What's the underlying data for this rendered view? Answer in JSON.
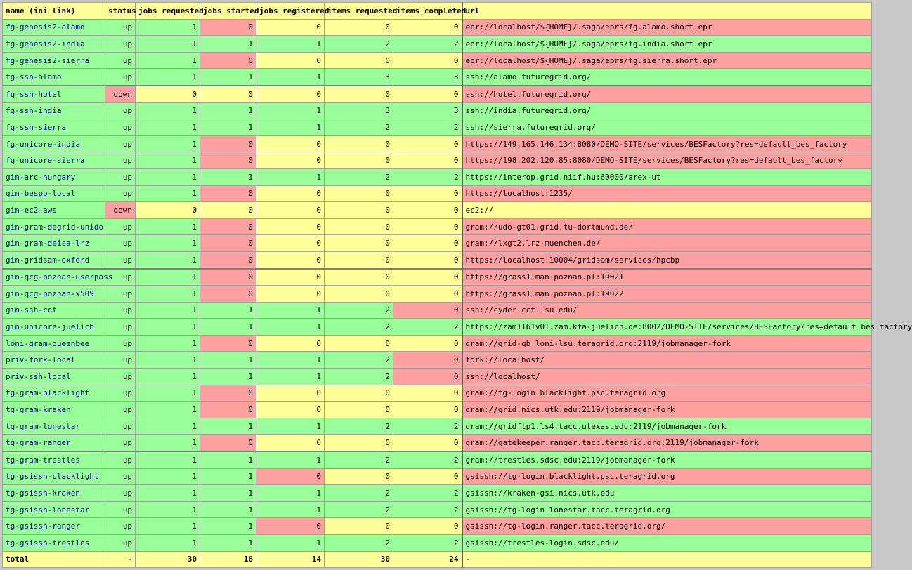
{
  "headers": [
    "name (ini link)",
    "status",
    "jobs requested",
    "jobs started",
    "jobs registered",
    "items requested",
    "items completed",
    "url"
  ],
  "rows": [
    {
      "name": "fg-genesis2-alamo",
      "status": "up",
      "jr": "1",
      "js": "0",
      "jreg": "0",
      "ir": "0",
      "ic": "0",
      "url": "epr://localhost/${HOME}/.saga/eprs/fg.alamo.short.epr",
      "c": [
        "g",
        "g",
        "g",
        "r",
        "y",
        "y",
        "y",
        "r"
      ]
    },
    {
      "name": "fg-genesis2-india",
      "status": "up",
      "jr": "1",
      "js": "1",
      "jreg": "1",
      "ir": "2",
      "ic": "2",
      "url": "epr://localhost/${HOME}/.saga/eprs/fg.india.short.epr",
      "c": [
        "g",
        "g",
        "g",
        "g",
        "g",
        "g",
        "g",
        "g"
      ]
    },
    {
      "name": "fg-genesis2-sierra",
      "status": "up",
      "jr": "1",
      "js": "0",
      "jreg": "0",
      "ir": "0",
      "ic": "0",
      "url": "epr://localhost/${HOME}/.saga/eprs/fg.sierra.short.epr",
      "c": [
        "g",
        "g",
        "g",
        "r",
        "y",
        "y",
        "y",
        "r"
      ]
    },
    {
      "name": "fg-ssh-alamo",
      "status": "up",
      "jr": "1",
      "js": "1",
      "jreg": "1",
      "ir": "3",
      "ic": "3",
      "url": "ssh://alamo.futuregrid.org/",
      "c": [
        "g",
        "g",
        "g",
        "g",
        "g",
        "g",
        "g",
        "g"
      ]
    },
    {
      "name": "fg-ssh-hotel",
      "status": "down",
      "jr": "0",
      "js": "0",
      "jreg": "0",
      "ir": "0",
      "ic": "0",
      "url": "ssh://hotel.futuregrid.org/",
      "c": [
        "g",
        "r",
        "y",
        "y",
        "y",
        "y",
        "y",
        "r"
      ],
      "sep": true
    },
    {
      "name": "fg-ssh-india",
      "status": "up",
      "jr": "1",
      "js": "1",
      "jreg": "1",
      "ir": "3",
      "ic": "3",
      "url": "ssh://india.futuregrid.org/",
      "c": [
        "g",
        "g",
        "g",
        "g",
        "g",
        "g",
        "g",
        "g"
      ]
    },
    {
      "name": "fg-ssh-sierra",
      "status": "up",
      "jr": "1",
      "js": "1",
      "jreg": "1",
      "ir": "2",
      "ic": "2",
      "url": "ssh://sierra.futuregrid.org/",
      "c": [
        "g",
        "g",
        "g",
        "g",
        "g",
        "g",
        "g",
        "g"
      ]
    },
    {
      "name": "fg-unicore-india",
      "status": "up",
      "jr": "1",
      "js": "0",
      "jreg": "0",
      "ir": "0",
      "ic": "0",
      "url": "https://149.165.146.134:8080/DEMO-SITE/services/BESFactory?res=default_bes_factory",
      "c": [
        "g",
        "g",
        "g",
        "r",
        "y",
        "y",
        "y",
        "r"
      ]
    },
    {
      "name": "fg-unicore-sierra",
      "status": "up",
      "jr": "1",
      "js": "0",
      "jreg": "0",
      "ir": "0",
      "ic": "0",
      "url": "https://198.202.120.85:8080/DEMO-SITE/services/BESFactory?res=default_bes_factory",
      "c": [
        "g",
        "g",
        "g",
        "r",
        "y",
        "y",
        "y",
        "r"
      ]
    },
    {
      "name": "gin-arc-hungary",
      "status": "up",
      "jr": "1",
      "js": "1",
      "jreg": "1",
      "ir": "2",
      "ic": "2",
      "url": "https://interop.grid.niif.hu:60000/arex-ut",
      "c": [
        "g",
        "g",
        "g",
        "g",
        "g",
        "g",
        "g",
        "g"
      ]
    },
    {
      "name": "gin-bespp-local",
      "status": "up",
      "jr": "1",
      "js": "0",
      "jreg": "0",
      "ir": "0",
      "ic": "0",
      "url": "https://localhost:1235/",
      "c": [
        "g",
        "g",
        "g",
        "r",
        "y",
        "y",
        "y",
        "r"
      ]
    },
    {
      "name": "gin-ec2-aws",
      "status": "down",
      "jr": "0",
      "js": "0",
      "jreg": "0",
      "ir": "0",
      "ic": "0",
      "url": "ec2://",
      "c": [
        "g",
        "r",
        "y",
        "y",
        "y",
        "y",
        "y",
        "y"
      ]
    },
    {
      "name": "gin-gram-degrid-unido",
      "status": "up",
      "jr": "1",
      "js": "0",
      "jreg": "0",
      "ir": "0",
      "ic": "0",
      "url": "gram://udo-gt01.grid.tu-dortmund.de/",
      "c": [
        "g",
        "g",
        "g",
        "r",
        "y",
        "y",
        "y",
        "r"
      ]
    },
    {
      "name": "gin-gram-deisa-lrz",
      "status": "up",
      "jr": "1",
      "js": "0",
      "jreg": "0",
      "ir": "0",
      "ic": "0",
      "url": "gram://lxgt2.lrz-muenchen.de/",
      "c": [
        "g",
        "g",
        "g",
        "r",
        "y",
        "y",
        "y",
        "r"
      ]
    },
    {
      "name": "gin-gridsam-oxford",
      "status": "up",
      "jr": "1",
      "js": "0",
      "jreg": "0",
      "ir": "0",
      "ic": "0",
      "url": "https://localhost:10004/gridsam/services/hpcbp",
      "c": [
        "g",
        "g",
        "g",
        "r",
        "y",
        "y",
        "y",
        "r"
      ]
    },
    {
      "name": "gin-qcg-poznan-userpass",
      "status": "up",
      "jr": "1",
      "js": "0",
      "jreg": "0",
      "ir": "0",
      "ic": "0",
      "url": "https://grass1.man.poznan.pl:19021",
      "c": [
        "g",
        "g",
        "g",
        "r",
        "y",
        "y",
        "y",
        "r"
      ],
      "sep": true
    },
    {
      "name": "gin-qcg-poznan-x509",
      "status": "up",
      "jr": "1",
      "js": "0",
      "jreg": "0",
      "ir": "0",
      "ic": "0",
      "url": "https://grass1.man.poznan.pl:19022",
      "c": [
        "g",
        "g",
        "g",
        "r",
        "y",
        "y",
        "y",
        "r"
      ]
    },
    {
      "name": "gin-ssh-cct",
      "status": "up",
      "jr": "1",
      "js": "1",
      "jreg": "1",
      "ir": "2",
      "ic": "0",
      "url": "ssh://cyder.cct.lsu.edu/",
      "c": [
        "g",
        "g",
        "g",
        "g",
        "g",
        "g",
        "r",
        "r"
      ]
    },
    {
      "name": "gin-unicore-juelich",
      "status": "up",
      "jr": "1",
      "js": "1",
      "jreg": "1",
      "ir": "2",
      "ic": "2",
      "url": "https://zam1161v01.zam.kfa-juelich.de:8002/DEMO-SITE/services/BESFactory?res=default_bes_factory",
      "c": [
        "g",
        "g",
        "g",
        "g",
        "g",
        "g",
        "g",
        "g"
      ]
    },
    {
      "name": "loni-gram-queenbee",
      "status": "up",
      "jr": "1",
      "js": "0",
      "jreg": "0",
      "ir": "0",
      "ic": "0",
      "url": "gram://grid-qb.loni-lsu.teragrid.org:2119/jobmanager-fork",
      "c": [
        "g",
        "g",
        "g",
        "r",
        "y",
        "y",
        "y",
        "r"
      ]
    },
    {
      "name": "priv-fork-local",
      "status": "up",
      "jr": "1",
      "js": "1",
      "jreg": "1",
      "ir": "2",
      "ic": "0",
      "url": "fork://localhost/",
      "c": [
        "g",
        "g",
        "g",
        "g",
        "g",
        "g",
        "r",
        "r"
      ]
    },
    {
      "name": "priv-ssh-local",
      "status": "up",
      "jr": "1",
      "js": "1",
      "jreg": "1",
      "ir": "2",
      "ic": "0",
      "url": "ssh://localhost/",
      "c": [
        "g",
        "g",
        "g",
        "g",
        "g",
        "g",
        "r",
        "r"
      ]
    },
    {
      "name": "tg-gram-blacklight",
      "status": "up",
      "jr": "1",
      "js": "0",
      "jreg": "0",
      "ir": "0",
      "ic": "0",
      "url": "gram://tg-login.blacklight.psc.teragrid.org",
      "c": [
        "g",
        "g",
        "g",
        "r",
        "y",
        "y",
        "y",
        "r"
      ]
    },
    {
      "name": "tg-gram-kraken",
      "status": "up",
      "jr": "1",
      "js": "0",
      "jreg": "0",
      "ir": "0",
      "ic": "0",
      "url": "gram://grid.nics.utk.edu:2119/jobmanager-fork",
      "c": [
        "g",
        "g",
        "g",
        "r",
        "y",
        "y",
        "y",
        "r"
      ]
    },
    {
      "name": "tg-gram-lonestar",
      "status": "up",
      "jr": "1",
      "js": "1",
      "jreg": "1",
      "ir": "2",
      "ic": "2",
      "url": "gram://gridftp1.ls4.tacc.utexas.edu:2119/jobmanager-fork",
      "c": [
        "g",
        "g",
        "g",
        "g",
        "g",
        "g",
        "g",
        "g"
      ]
    },
    {
      "name": "tg-gram-ranger",
      "status": "up",
      "jr": "1",
      "js": "0",
      "jreg": "0",
      "ir": "0",
      "ic": "0",
      "url": "gram://gatekeeper.ranger.tacc.teragrid.org:2119/jobmanager-fork",
      "c": [
        "g",
        "g",
        "g",
        "r",
        "y",
        "y",
        "y",
        "r"
      ]
    },
    {
      "name": "tg-gram-trestles",
      "status": "up",
      "jr": "1",
      "js": "1",
      "jreg": "1",
      "ir": "2",
      "ic": "2",
      "url": "gram://trestles.sdsc.edu:2119/jobmanager-fork",
      "c": [
        "g",
        "g",
        "g",
        "g",
        "g",
        "g",
        "g",
        "g"
      ],
      "sep": true
    },
    {
      "name": "tg-gsissh-blacklight",
      "status": "up",
      "jr": "1",
      "js": "1",
      "jreg": "0",
      "ir": "0",
      "ic": "0",
      "url": "gsissh://tg-login.blacklight.psc.teragrid.org",
      "c": [
        "g",
        "g",
        "g",
        "g",
        "r",
        "y",
        "y",
        "r"
      ]
    },
    {
      "name": "tg-gsissh-kraken",
      "status": "up",
      "jr": "1",
      "js": "1",
      "jreg": "1",
      "ir": "2",
      "ic": "2",
      "url": "gsissh://kraken-gsi.nics.utk.edu",
      "c": [
        "g",
        "g",
        "g",
        "g",
        "g",
        "g",
        "g",
        "g"
      ]
    },
    {
      "name": "tg-gsissh-lonestar",
      "status": "up",
      "jr": "1",
      "js": "1",
      "jreg": "1",
      "ir": "2",
      "ic": "2",
      "url": "gsissh://tg-login.lonestar.tacc.teragrid.org",
      "c": [
        "g",
        "g",
        "g",
        "g",
        "g",
        "g",
        "g",
        "g"
      ]
    },
    {
      "name": "tg-gsissh-ranger",
      "status": "up",
      "jr": "1",
      "js": "1",
      "jreg": "0",
      "ir": "0",
      "ic": "0",
      "url": "gsissh://tg-login.ranger.tacc.teragrid.org/",
      "c": [
        "g",
        "g",
        "g",
        "g",
        "r",
        "y",
        "y",
        "r"
      ]
    },
    {
      "name": "tg-gsissh-trestles",
      "status": "up",
      "jr": "1",
      "js": "1",
      "jreg": "1",
      "ir": "2",
      "ic": "2",
      "url": "gsissh://trestles-login.sdsc.edu/",
      "c": [
        "g",
        "g",
        "g",
        "g",
        "g",
        "g",
        "g",
        "g"
      ]
    }
  ],
  "total": {
    "name": "total",
    "status": "-",
    "jr": "30",
    "js": "16",
    "jreg": "14",
    "ir": "30",
    "ic": "24",
    "url": "-"
  },
  "colors": {
    "green": "#99ff99",
    "yellow": "#ffff99",
    "red": "#ffa0a0"
  }
}
